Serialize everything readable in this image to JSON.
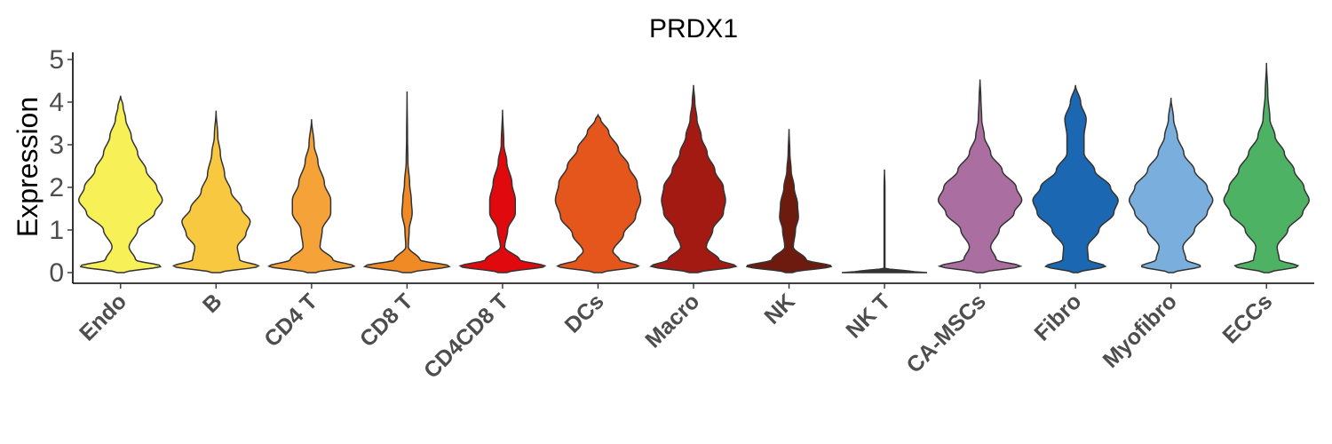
{
  "chart_data": {
    "type": "violin",
    "title": "PRDX1",
    "xlabel": "",
    "ylabel": "Expression",
    "ylim": [
      -0.2,
      5.15
    ],
    "yticks": [
      0,
      1,
      2,
      3,
      4,
      5
    ],
    "grid": false,
    "legend": "none",
    "categories": [
      "Endo",
      "B",
      "CD4 T",
      "CD8 T",
      "CD4CD8 T",
      "DCs",
      "Macro",
      "NK",
      "NK T",
      "CA-MSCs",
      "Fibro",
      "Myofibro",
      "ECCs"
    ],
    "series": [
      {
        "category": "Endo",
        "color": "#F7F057",
        "max": 4.15,
        "profile": [
          [
            0,
            0.08
          ],
          [
            0.15,
            0.95
          ],
          [
            0.3,
            0.35
          ],
          [
            0.6,
            0.2
          ],
          [
            1.0,
            0.4
          ],
          [
            1.4,
            0.8
          ],
          [
            1.7,
            0.98
          ],
          [
            2.0,
            0.85
          ],
          [
            2.4,
            0.6
          ],
          [
            2.8,
            0.4
          ],
          [
            3.2,
            0.25
          ],
          [
            3.6,
            0.12
          ],
          [
            3.9,
            0.06
          ],
          [
            4.15,
            0
          ]
        ]
      },
      {
        "category": "B",
        "color": "#F7C840",
        "max": 3.8,
        "profile": [
          [
            0,
            0.1
          ],
          [
            0.15,
            1.0
          ],
          [
            0.3,
            0.55
          ],
          [
            0.6,
            0.5
          ],
          [
            0.9,
            0.7
          ],
          [
            1.2,
            0.8
          ],
          [
            1.5,
            0.6
          ],
          [
            1.9,
            0.35
          ],
          [
            2.3,
            0.2
          ],
          [
            2.8,
            0.1
          ],
          [
            3.2,
            0.04
          ],
          [
            3.8,
            0
          ]
        ]
      },
      {
        "category": "CD4 T",
        "color": "#F5A338",
        "max": 3.6,
        "profile": [
          [
            0,
            0.1
          ],
          [
            0.15,
            1.0
          ],
          [
            0.3,
            0.5
          ],
          [
            0.6,
            0.2
          ],
          [
            1.0,
            0.25
          ],
          [
            1.4,
            0.45
          ],
          [
            1.7,
            0.45
          ],
          [
            2.1,
            0.3
          ],
          [
            2.6,
            0.15
          ],
          [
            3.0,
            0.06
          ],
          [
            3.6,
            0
          ]
        ]
      },
      {
        "category": "CD8 T",
        "color": "#F08A24",
        "max": 4.25,
        "profile": [
          [
            0,
            0.1
          ],
          [
            0.15,
            1.0
          ],
          [
            0.3,
            0.3
          ],
          [
            0.6,
            0.03
          ],
          [
            1.0,
            0.05
          ],
          [
            1.4,
            0.12
          ],
          [
            1.7,
            0.1
          ],
          [
            2.1,
            0.06
          ],
          [
            2.6,
            0.02
          ],
          [
            3.2,
            0.01
          ],
          [
            4.25,
            0
          ]
        ]
      },
      {
        "category": "CD4CD8 T",
        "color": "#E0090D",
        "max": 3.82,
        "profile": [
          [
            0,
            0.1
          ],
          [
            0.15,
            1.0
          ],
          [
            0.3,
            0.4
          ],
          [
            0.6,
            0.05
          ],
          [
            1.0,
            0.12
          ],
          [
            1.4,
            0.3
          ],
          [
            1.7,
            0.3
          ],
          [
            2.1,
            0.22
          ],
          [
            2.6,
            0.1
          ],
          [
            3.0,
            0.03
          ],
          [
            3.82,
            0
          ]
        ]
      },
      {
        "category": "DCs",
        "color": "#E5561C",
        "max": 3.7,
        "profile": [
          [
            0,
            0.1
          ],
          [
            0.15,
            0.95
          ],
          [
            0.3,
            0.5
          ],
          [
            0.5,
            0.35
          ],
          [
            0.9,
            0.6
          ],
          [
            1.3,
            0.88
          ],
          [
            1.7,
            1.0
          ],
          [
            2.1,
            0.92
          ],
          [
            2.5,
            0.72
          ],
          [
            2.9,
            0.48
          ],
          [
            3.3,
            0.25
          ],
          [
            3.6,
            0.06
          ],
          [
            3.7,
            0
          ]
        ]
      },
      {
        "category": "Macro",
        "color": "#A31A13",
        "max": 4.4,
        "profile": [
          [
            0,
            0.1
          ],
          [
            0.15,
            1.0
          ],
          [
            0.3,
            0.6
          ],
          [
            0.6,
            0.3
          ],
          [
            1.0,
            0.45
          ],
          [
            1.4,
            0.7
          ],
          [
            1.7,
            0.75
          ],
          [
            2.0,
            0.7
          ],
          [
            2.4,
            0.5
          ],
          [
            2.8,
            0.32
          ],
          [
            3.2,
            0.18
          ],
          [
            3.6,
            0.08
          ],
          [
            4.0,
            0.03
          ],
          [
            4.4,
            0
          ]
        ]
      },
      {
        "category": "NK",
        "color": "#6E1B0F",
        "max": 3.37,
        "profile": [
          [
            0,
            0.08
          ],
          [
            0.15,
            1.0
          ],
          [
            0.3,
            0.4
          ],
          [
            0.6,
            0.1
          ],
          [
            1.0,
            0.15
          ],
          [
            1.3,
            0.22
          ],
          [
            1.6,
            0.2
          ],
          [
            2.0,
            0.12
          ],
          [
            2.4,
            0.05
          ],
          [
            2.8,
            0.02
          ],
          [
            3.37,
            0
          ]
        ]
      },
      {
        "category": "NK T",
        "color": "#333333",
        "max": 2.42,
        "profile": [
          [
            0,
            1.0
          ],
          [
            0.03,
            0.6
          ],
          [
            0.1,
            0.01
          ],
          [
            1.0,
            0.01
          ],
          [
            2.0,
            0.01
          ],
          [
            2.42,
            0
          ]
        ]
      },
      {
        "category": "CA-MSCs",
        "color": "#AA6FA0",
        "max": 4.53,
        "profile": [
          [
            0,
            0.08
          ],
          [
            0.15,
            0.95
          ],
          [
            0.3,
            0.38
          ],
          [
            0.6,
            0.25
          ],
          [
            1.0,
            0.45
          ],
          [
            1.4,
            0.8
          ],
          [
            1.7,
            0.98
          ],
          [
            2.0,
            0.85
          ],
          [
            2.4,
            0.52
          ],
          [
            2.8,
            0.25
          ],
          [
            3.2,
            0.1
          ],
          [
            3.6,
            0.04
          ],
          [
            4.1,
            0.02
          ],
          [
            4.53,
            0
          ]
        ]
      },
      {
        "category": "Fibro",
        "color": "#1B67B1",
        "max": 4.4,
        "profile": [
          [
            0,
            0.06
          ],
          [
            0.15,
            0.7
          ],
          [
            0.3,
            0.3
          ],
          [
            0.6,
            0.28
          ],
          [
            1.0,
            0.55
          ],
          [
            1.4,
            0.9
          ],
          [
            1.7,
            1.0
          ],
          [
            2.0,
            0.82
          ],
          [
            2.4,
            0.45
          ],
          [
            2.8,
            0.2
          ],
          [
            3.2,
            0.2
          ],
          [
            3.6,
            0.25
          ],
          [
            4.0,
            0.12
          ],
          [
            4.4,
            0
          ]
        ]
      },
      {
        "category": "Myofibro",
        "color": "#7AAEDD",
        "max": 4.1,
        "profile": [
          [
            0,
            0.06
          ],
          [
            0.15,
            0.7
          ],
          [
            0.3,
            0.35
          ],
          [
            0.6,
            0.28
          ],
          [
            1.0,
            0.55
          ],
          [
            1.4,
            0.85
          ],
          [
            1.7,
            0.98
          ],
          [
            2.0,
            0.85
          ],
          [
            2.4,
            0.55
          ],
          [
            2.8,
            0.3
          ],
          [
            3.2,
            0.15
          ],
          [
            3.6,
            0.06
          ],
          [
            4.1,
            0
          ]
        ]
      },
      {
        "category": "ECCs",
        "color": "#4EB265",
        "max": 4.92,
        "profile": [
          [
            0,
            0.06
          ],
          [
            0.15,
            0.75
          ],
          [
            0.3,
            0.3
          ],
          [
            0.6,
            0.25
          ],
          [
            1.0,
            0.5
          ],
          [
            1.4,
            0.85
          ],
          [
            1.7,
            1.0
          ],
          [
            2.0,
            0.88
          ],
          [
            2.4,
            0.65
          ],
          [
            2.8,
            0.42
          ],
          [
            3.2,
            0.2
          ],
          [
            3.6,
            0.08
          ],
          [
            4.2,
            0.03
          ],
          [
            4.92,
            0
          ]
        ]
      }
    ]
  }
}
